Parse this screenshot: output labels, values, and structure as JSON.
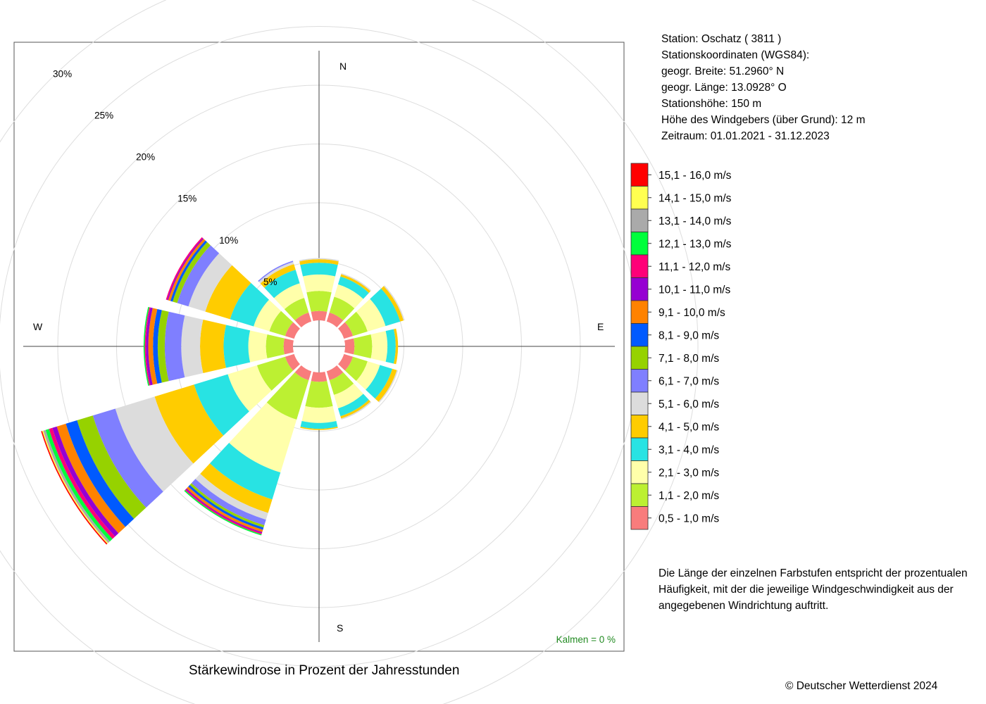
{
  "title": "Stärkewindrose in Prozent der Jahresstunden",
  "station_info": [
    "Station:  Oschatz  ( 3811 )",
    "Stationskoordinaten (WGS84):",
    "geogr. Breite: 51.2960° N",
    "geogr. Länge: 13.0928° O",
    "Stationshöhe: 150 m",
    "Höhe des Windgebers (über Grund): 12 m",
    "Zeitraum: 01.01.2021 - 31.12.2023"
  ],
  "note": "Die Länge der einzelnen Farbstufen entspricht der prozentualen Häufigkeit, mit der die jeweilige Windgeschwindigkeit aus der angegebenen Windrichtung auftritt.",
  "copyright": "© Deutscher Wetterdienst  2024",
  "calm_label": "Kalmen  =  0 %",
  "chart_data": {
    "type": "windrose",
    "directions": [
      "N",
      "E",
      "S",
      "W"
    ],
    "sector_angles_deg": [
      0,
      30,
      60,
      90,
      120,
      150,
      180,
      210,
      240,
      270,
      300,
      330
    ],
    "radial_ticks": [
      "5%",
      "10%",
      "15%",
      "20%",
      "25%",
      "30%"
    ],
    "radial_tick_values": [
      5,
      10,
      15,
      20,
      25,
      30
    ],
    "rmax_percent": 30,
    "calm_percent": 0,
    "speed_classes": [
      {
        "label": "0,5 - 1,0 m/s",
        "color": "#f87c7c"
      },
      {
        "label": "1,1 - 2,0 m/s",
        "color": "#bcf032"
      },
      {
        "label": "2,1 - 3,0 m/s",
        "color": "#ffffaa"
      },
      {
        "label": "3,1 - 4,0 m/s",
        "color": "#28e3e3"
      },
      {
        "label": "4,1 - 5,0 m/s",
        "color": "#ffcc00"
      },
      {
        "label": "5,1 - 6,0 m/s",
        "color": "#dcdcdc"
      },
      {
        "label": "6,1 - 7,0 m/s",
        "color": "#7f7fff"
      },
      {
        "label": "7,1 - 8,0 m/s",
        "color": "#96d200"
      },
      {
        "label": "8,1 - 9,0 m/s",
        "color": "#005aff"
      },
      {
        "label": "9,1 - 10,0 m/s",
        "color": "#ff8200"
      },
      {
        "label": "10,1 - 11,0 m/s",
        "color": "#9600d2"
      },
      {
        "label": "11,1 - 12,0 m/s",
        "color": "#ff0078"
      },
      {
        "label": "12,1 - 13,0 m/s",
        "color": "#00ff3c"
      },
      {
        "label": "13,1 - 14,0 m/s",
        "color": "#aaaaaa"
      },
      {
        "label": "14,1 - 15,0 m/s",
        "color": "#ffff50"
      },
      {
        "label": "15,1 - 16,0 m/s",
        "color": "#ff0000"
      }
    ],
    "sectors": [
      {
        "direction_deg": 0,
        "values": [
          0.8,
          1.7,
          1.4,
          1.0,
          0.3,
          0.1,
          0,
          0,
          0,
          0,
          0,
          0,
          0,
          0,
          0,
          0
        ]
      },
      {
        "direction_deg": 30,
        "values": [
          0.8,
          1.4,
          1.1,
          0.7,
          0.2,
          0.1,
          0,
          0,
          0,
          0,
          0,
          0,
          0,
          0,
          0,
          0
        ]
      },
      {
        "direction_deg": 60,
        "values": [
          0.8,
          1.3,
          1.6,
          1.3,
          0.3,
          0.1,
          0,
          0,
          0,
          0,
          0,
          0,
          0,
          0,
          0,
          0
        ]
      },
      {
        "direction_deg": 90,
        "values": [
          0.8,
          1.5,
          1.3,
          0.7,
          0.2,
          0,
          0,
          0,
          0,
          0,
          0,
          0,
          0,
          0,
          0,
          0
        ]
      },
      {
        "direction_deg": 120,
        "values": [
          0.8,
          1.3,
          1.1,
          1.1,
          0.4,
          0.1,
          0,
          0,
          0,
          0,
          0,
          0,
          0,
          0,
          0,
          0
        ]
      },
      {
        "direction_deg": 150,
        "values": [
          0.8,
          1.3,
          1.2,
          0.7,
          0.2,
          0.1,
          0,
          0,
          0,
          0,
          0,
          0,
          0,
          0,
          0,
          0
        ]
      },
      {
        "direction_deg": 180,
        "values": [
          0.8,
          2.2,
          1.3,
          0.5,
          0.1,
          0,
          0,
          0,
          0,
          0,
          0,
          0,
          0,
          0,
          0,
          0
        ]
      },
      {
        "direction_deg": 210,
        "values": [
          0.8,
          3.5,
          4.7,
          2.4,
          1.2,
          0.6,
          0.5,
          0.2,
          0.2,
          0.2,
          0.1,
          0.1,
          0.1,
          0,
          0,
          0
        ]
      },
      {
        "direction_deg": 240,
        "values": [
          0.8,
          2.5,
          2.6,
          3.0,
          3.5,
          3.5,
          2.0,
          1.4,
          1.0,
          0.8,
          0.4,
          0.3,
          0.3,
          0.2,
          0.1,
          0.1
        ]
      },
      {
        "direction_deg": 270,
        "values": [
          0.8,
          1.5,
          1.5,
          2.1,
          2.0,
          1.6,
          1.4,
          0.6,
          0.4,
          0.4,
          0.2,
          0.1,
          0.1,
          0,
          0,
          0
        ]
      },
      {
        "direction_deg": 300,
        "values": [
          0.8,
          1.4,
          1.4,
          2.1,
          2.2,
          1.5,
          1.0,
          0.4,
          0.2,
          0.2,
          0.1,
          0.1,
          0,
          0,
          0,
          0
        ]
      },
      {
        "direction_deg": 330,
        "values": [
          0.8,
          1.3,
          1.3,
          1.2,
          0.5,
          0.2,
          0.1,
          0,
          0,
          0,
          0,
          0,
          0,
          0,
          0,
          0
        ]
      }
    ]
  }
}
